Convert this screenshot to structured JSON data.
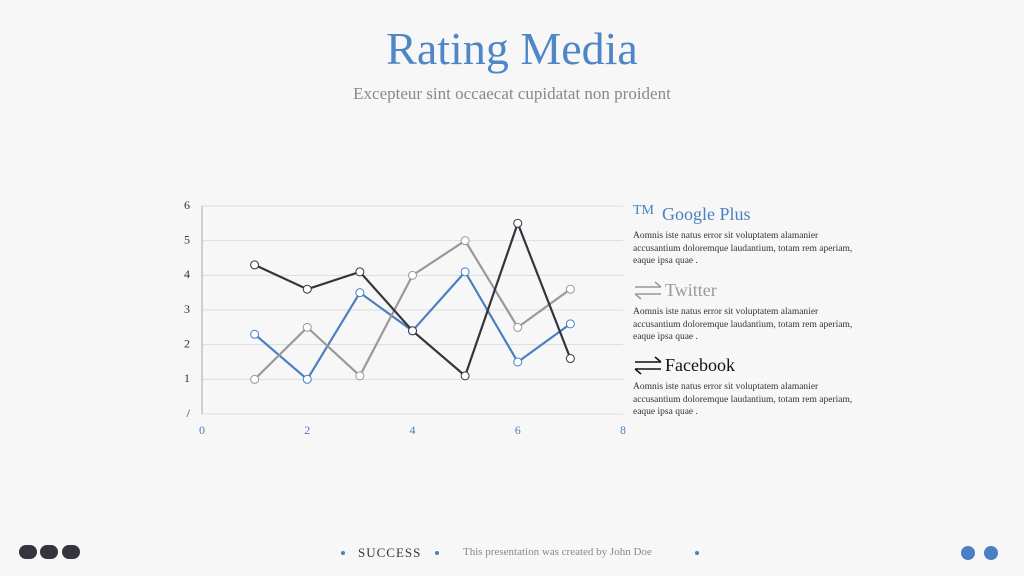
{
  "header": {
    "title": "Rating Media",
    "subtitle": "Excepteur sint occaecat cupidatat non proident"
  },
  "chart_data": {
    "type": "line",
    "x": [
      1,
      2,
      3,
      4,
      5,
      6,
      7
    ],
    "series": [
      {
        "name": "Google Plus",
        "color": "#4a7fc1",
        "values": [
          2.3,
          1.0,
          3.5,
          2.4,
          4.1,
          1.5,
          2.6
        ]
      },
      {
        "name": "Twitter",
        "color": "#999999",
        "values": [
          1.0,
          2.5,
          1.1,
          4.0,
          5.0,
          2.5,
          3.6
        ]
      },
      {
        "name": "Facebook",
        "color": "#35343f",
        "values": [
          4.3,
          3.6,
          4.1,
          2.4,
          1.1,
          5.5,
          1.6
        ]
      }
    ],
    "xlim": [
      0,
      8
    ],
    "xticks": [
      0,
      2,
      4,
      6,
      8
    ],
    "ylim": [
      0,
      6
    ],
    "yticks": [
      {
        "value": 0,
        "label": "/"
      },
      1,
      2,
      3,
      4,
      5,
      6
    ],
    "grid": true
  },
  "legend": [
    {
      "icon": "TM",
      "description": "Aomnis iste natus error sit voluptatem alamanier accusantium doloremque laudantium, totam rem aperiam, eaque ipsa quae ."
    },
    {
      "description": "Aomnis iste natus error sit voluptatem alamanier accusantium doloremque laudantium, totam rem aperiam, eaque ipsa quae ."
    },
    {
      "description": "Aomnis iste natus error sit voluptatem alamanier accusantium doloremque laudantium, totam rem aperiam, eaque ipsa quae ."
    }
  ],
  "footer": {
    "brand": "SUCCESS",
    "credit": "This presentation was created by John Doe"
  }
}
